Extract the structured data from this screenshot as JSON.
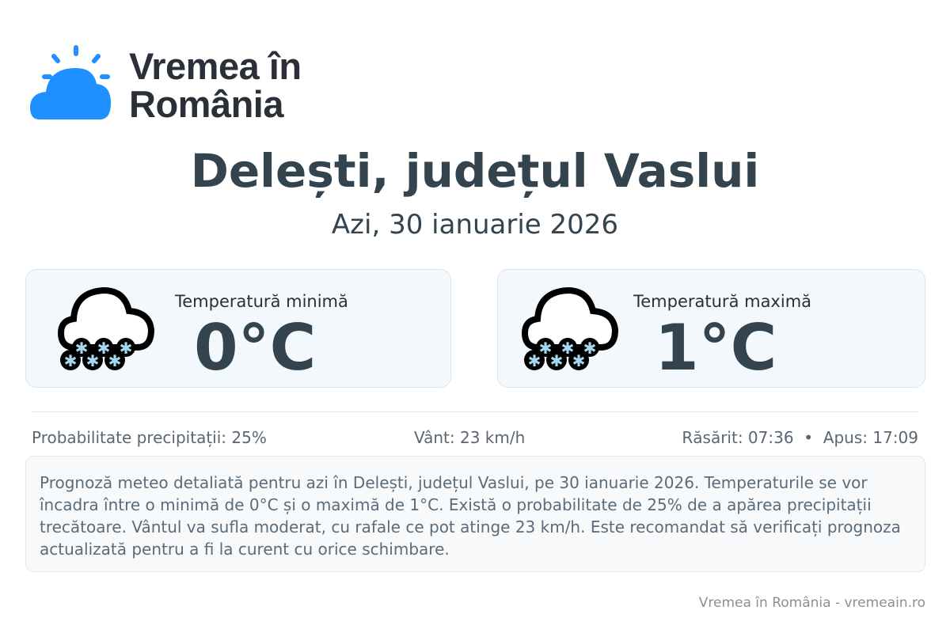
{
  "brand": {
    "line1": "Vremea în",
    "line2": "România",
    "accent": "#1e90ff"
  },
  "title": "Delești, județul Vaslui",
  "date": "Azi, 30 ianuarie 2026",
  "cards": [
    {
      "label": "Temperatură minimă",
      "value": "0°C",
      "icon": "snow-cloud-icon"
    },
    {
      "label": "Temperatură maximă",
      "value": "1°C",
      "icon": "snow-cloud-icon"
    }
  ],
  "stats": {
    "precip": "Probabilitate precipitații: 25%",
    "wind": "Vânt: 23 km/h",
    "sun": "Răsărit: 07:36  •  Apus: 17:09"
  },
  "description": "Prognoză meteo detaliată pentru azi în Delești, județul Vaslui, pe 30 ianuarie 2026. Temperaturile se vor încadra între o minimă de 0°C și o maximă de 1°C. Există o probabilitate de 25% de a apărea precipitații trecătoare. Vântul va sufla moderat, cu rafale ce pot atinge 23 km/h. Este recomandat să verificați prognoza actualizată pentru a fi la curent cu orice schimbare.",
  "footer": "Vremea în România - vremeain.ro"
}
